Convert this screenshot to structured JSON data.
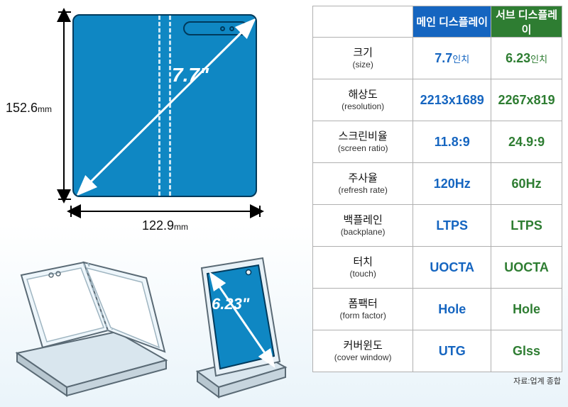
{
  "device": {
    "height_mm": "152.6",
    "width_mm": "122.9",
    "unit": "mm",
    "main_diag": "7.7\"",
    "sub_diag": "6.23\""
  },
  "table": {
    "header_main": "메인 디스플레이",
    "header_sub": "서브 디스플레이",
    "rows": [
      {
        "ko": "크기",
        "en": "(size)",
        "main": "7.7",
        "main_unit": "인치",
        "sub": "6.23",
        "sub_unit": "인치"
      },
      {
        "ko": "해상도",
        "en": "(resolution)",
        "main": "2213x1689",
        "sub": "2267x819"
      },
      {
        "ko": "스크린비율",
        "en": "(screen ratio)",
        "main": "11.8:9",
        "sub": "24.9:9"
      },
      {
        "ko": "주사율",
        "en": "(refresh rate)",
        "main": "120Hz",
        "sub": "60Hz"
      },
      {
        "ko": "백플레인",
        "en": "(backplane)",
        "main": "LTPS",
        "sub": "LTPS"
      },
      {
        "ko": "터치",
        "en": "(touch)",
        "main": "UOCTA",
        "sub": "UOCTA"
      },
      {
        "ko": "폼팩터",
        "en": "(form factor)",
        "main": "Hole",
        "sub": "Hole"
      },
      {
        "ko": "커버윈도",
        "en": "(cover window)",
        "main": "UTG",
        "sub": "Glss"
      }
    ]
  },
  "source": "자료:업계 종합",
  "colors": {
    "device_fill": "#0f87c3",
    "device_stroke": "#003a5c",
    "main_header": "#1565c0",
    "sub_header": "#2e7d32",
    "arrow": "#000000"
  }
}
